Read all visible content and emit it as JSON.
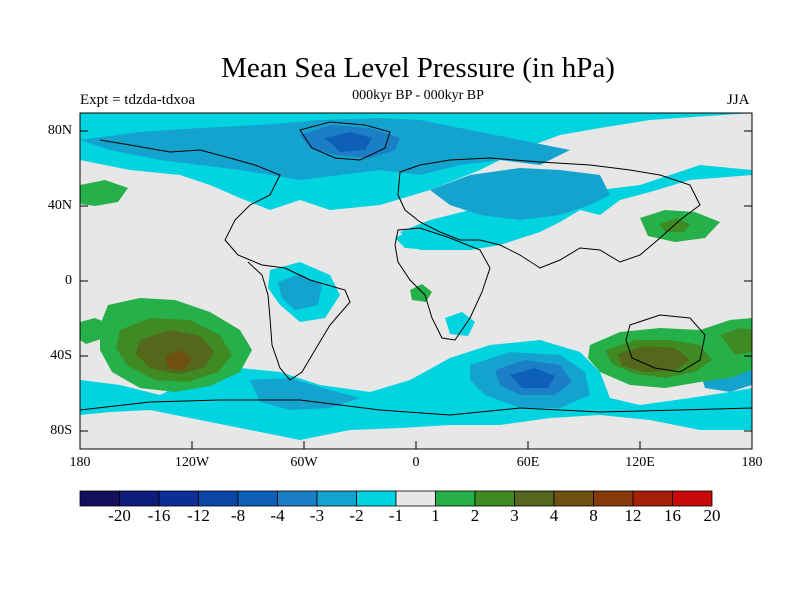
{
  "title": "Mean Sea Level Pressure (in hPa)",
  "subtitle": "000kyr BP - 000kyr BP",
  "left_label": "Expt = tdzda-tdxoa",
  "right_label": "JJA",
  "lat_labels": [
    "80N",
    "40N",
    "0",
    "40S",
    "80S"
  ],
  "lon_labels": [
    "180",
    "120W",
    "60W",
    "0",
    "60E",
    "120E",
    "180"
  ],
  "colorbar": {
    "labels": [
      "-20",
      "-16",
      "-12",
      "-8",
      "-4",
      "-3",
      "-2",
      "-1",
      "1",
      "2",
      "3",
      "4",
      "8",
      "12",
      "16",
      "20"
    ],
    "colors": [
      "#15105e",
      "#0e1c7b",
      "#0b2f96",
      "#0a45a8",
      "#0e5fb8",
      "#1b7fc6",
      "#14a3cf",
      "#00d4e0",
      "#e7e7e7",
      "#26b04a",
      "#3f8a22",
      "#55661d",
      "#6e5112",
      "#863a0b",
      "#a51e08",
      "#c80a0a"
    ]
  },
  "map_colors": {
    "neutral": "#e7e7e7",
    "cyan": "#00d4e0",
    "blue1": "#14a3cf",
    "blue2": "#1b7fc6",
    "blue3": "#0e5fb8",
    "blue4": "#0a45a8",
    "green1": "#26b04a",
    "green2": "#3f8a22",
    "olive": "#55661d",
    "brown": "#6e5112",
    "coast": "#000000"
  }
}
